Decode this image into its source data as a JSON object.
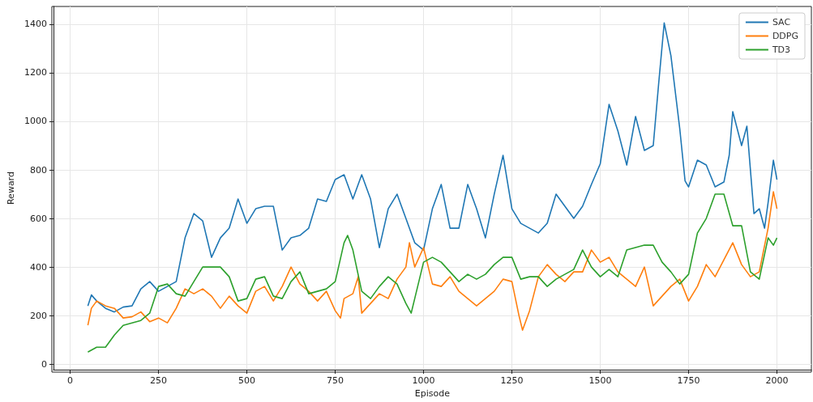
{
  "chart_data": {
    "type": "line",
    "xlabel": "Episode",
    "ylabel": "Reward",
    "xlim": [
      -47.5,
      2097.5
    ],
    "xticks": [
      0,
      250,
      500,
      750,
      1000,
      1250,
      1500,
      1750,
      2000
    ],
    "ylim": [
      -23,
      1473
    ],
    "yticks": [
      0,
      200,
      400,
      600,
      800,
      1000,
      1200,
      1400
    ],
    "grid": true,
    "legend": "top right",
    "marker": "none",
    "line_style": "solid",
    "series": [
      {
        "name": "SAC",
        "color": "#1f77b4",
        "x": [
          50,
          60,
          75,
          100,
          125,
          150,
          175,
          200,
          225,
          250,
          275,
          300,
          325,
          350,
          375,
          400,
          425,
          450,
          475,
          500,
          525,
          550,
          575,
          600,
          625,
          650,
          675,
          700,
          725,
          750,
          775,
          800,
          825,
          850,
          875,
          900,
          925,
          950,
          975,
          1000,
          1025,
          1050,
          1075,
          1100,
          1125,
          1150,
          1175,
          1200,
          1225,
          1250,
          1275,
          1300,
          1325,
          1350,
          1375,
          1400,
          1425,
          1450,
          1475,
          1500,
          1525,
          1550,
          1575,
          1600,
          1625,
          1650,
          1665,
          1681,
          1700,
          1725,
          1740,
          1750,
          1775,
          1800,
          1825,
          1850,
          1865,
          1875,
          1900,
          1915,
          1935,
          1950,
          1965,
          1975,
          1990,
          2000
        ],
        "values": [
          240,
          285,
          260,
          230,
          215,
          235,
          240,
          310,
          340,
          300,
          320,
          340,
          520,
          620,
          590,
          440,
          520,
          560,
          680,
          580,
          640,
          650,
          650,
          470,
          520,
          530,
          560,
          680,
          670,
          760,
          780,
          680,
          780,
          680,
          480,
          640,
          700,
          600,
          500,
          470,
          640,
          740,
          560,
          560,
          740,
          640,
          520,
          700,
          860,
          640,
          580,
          560,
          540,
          580,
          700,
          650,
          600,
          650,
          740,
          825,
          1070,
          960,
          820,
          1020,
          880,
          900,
          1150,
          1405,
          1270,
          970,
          755,
          730,
          840,
          820,
          730,
          750,
          860,
          1040,
          900,
          980,
          620,
          640,
          560,
          665,
          840,
          760
        ]
      },
      {
        "name": "DDPG",
        "color": "#ff7f0e",
        "x": [
          50,
          60,
          75,
          100,
          125,
          150,
          175,
          200,
          225,
          250,
          275,
          300,
          325,
          350,
          375,
          400,
          425,
          450,
          475,
          500,
          525,
          550,
          575,
          600,
          625,
          650,
          675,
          700,
          725,
          750,
          765,
          775,
          800,
          815,
          825,
          850,
          875,
          900,
          925,
          950,
          960,
          975,
          1000,
          1025,
          1050,
          1075,
          1100,
          1125,
          1150,
          1175,
          1200,
          1225,
          1250,
          1270,
          1280,
          1300,
          1325,
          1350,
          1375,
          1400,
          1425,
          1450,
          1475,
          1500,
          1525,
          1550,
          1575,
          1600,
          1625,
          1650,
          1675,
          1700,
          1725,
          1750,
          1775,
          1800,
          1825,
          1850,
          1875,
          1900,
          1925,
          1950,
          1975,
          1990,
          2000
        ],
        "values": [
          160,
          230,
          260,
          240,
          230,
          190,
          195,
          215,
          175,
          190,
          170,
          230,
          310,
          290,
          310,
          280,
          230,
          280,
          240,
          210,
          300,
          320,
          260,
          320,
          400,
          330,
          300,
          260,
          300,
          220,
          190,
          270,
          290,
          360,
          210,
          250,
          290,
          270,
          350,
          400,
          500,
          400,
          480,
          330,
          320,
          360,
          300,
          270,
          240,
          270,
          300,
          350,
          340,
          200,
          140,
          220,
          360,
          410,
          370,
          340,
          380,
          380,
          470,
          420,
          440,
          380,
          350,
          320,
          400,
          240,
          280,
          320,
          350,
          260,
          320,
          410,
          360,
          430,
          500,
          410,
          360,
          380,
          560,
          710,
          640
        ]
      },
      {
        "name": "TD3",
        "color": "#2ca02c",
        "x": [
          50,
          75,
          100,
          125,
          150,
          175,
          200,
          225,
          250,
          275,
          300,
          325,
          350,
          375,
          400,
          425,
          450,
          475,
          500,
          525,
          550,
          575,
          600,
          625,
          650,
          675,
          700,
          725,
          750,
          775,
          785,
          800,
          825,
          850,
          875,
          900,
          925,
          950,
          965,
          975,
          1000,
          1025,
          1050,
          1075,
          1100,
          1125,
          1150,
          1175,
          1200,
          1225,
          1250,
          1275,
          1300,
          1325,
          1350,
          1375,
          1400,
          1425,
          1450,
          1475,
          1500,
          1525,
          1550,
          1575,
          1600,
          1625,
          1650,
          1675,
          1700,
          1725,
          1750,
          1775,
          1800,
          1825,
          1850,
          1875,
          1900,
          1925,
          1950,
          1975,
          1990,
          2000
        ],
        "values": [
          50,
          70,
          70,
          120,
          160,
          170,
          180,
          210,
          320,
          330,
          290,
          280,
          340,
          400,
          400,
          400,
          360,
          260,
          270,
          350,
          360,
          280,
          270,
          340,
          380,
          290,
          300,
          310,
          340,
          500,
          530,
          470,
          300,
          270,
          320,
          360,
          330,
          250,
          210,
          270,
          420,
          440,
          420,
          380,
          340,
          370,
          350,
          370,
          410,
          440,
          440,
          350,
          360,
          360,
          320,
          350,
          370,
          390,
          470,
          400,
          360,
          390,
          360,
          470,
          480,
          490,
          490,
          420,
          380,
          330,
          370,
          540,
          600,
          700,
          700,
          570,
          570,
          380,
          350,
          520,
          490,
          520
        ]
      }
    ]
  }
}
